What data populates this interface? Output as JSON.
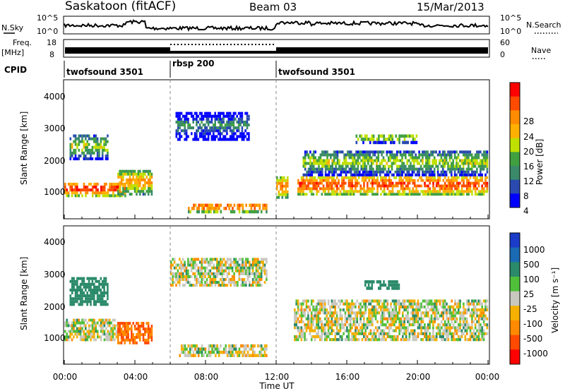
{
  "header": {
    "station": "Saskatoon (fitACF)",
    "beam": "Beam 03",
    "date": "15/Mar/2013"
  },
  "top_panels": {
    "nsky_label": "N.Sky",
    "nsky_ticks": [
      "10^5",
      "10^0"
    ],
    "nsearch_label": "N.Search",
    "nsearch_ticks": [
      "10^5",
      "10^0"
    ],
    "freq_label_1": "Freq.",
    "freq_label_2": "[MHz]",
    "freq_ticks": [
      "18",
      "8"
    ],
    "nave_label": "Nave",
    "nave_ticks": [
      "60",
      "0"
    ],
    "cpid_label": "CPID"
  },
  "cpid_segments": [
    {
      "label": "twofsound 3501",
      "start_hour": 0,
      "end_hour": 6
    },
    {
      "label": "rbsp 200",
      "start_hour": 6,
      "end_hour": 12
    },
    {
      "label": "twofsound 3501",
      "start_hour": 12,
      "end_hour": 24
    }
  ],
  "panels": {
    "power": {
      "ylabel": "Slant Range [km]",
      "yticks": [
        "4000",
        "3000",
        "2000",
        "1000"
      ],
      "cbar_label": "Power [dB]",
      "cbar_ticks": [
        "28",
        "24",
        "20",
        "16",
        "12",
        "8",
        "4"
      ],
      "cbar_colors": [
        "#ff0000",
        "#ff4a00",
        "#ff8c00",
        "#ffb000",
        "#c0e000",
        "#40a040",
        "#3a8a6a",
        "#2a4ab0",
        "#0000ff"
      ]
    },
    "velocity": {
      "ylabel": "Slant Range [km]",
      "yticks": [
        "4000",
        "3000",
        "2000",
        "1000"
      ],
      "cbar_label": "Velocity [m s⁻¹]",
      "cbar_ticks": [
        "1000",
        "500",
        "100",
        "25",
        "-25",
        "-100",
        "-500",
        "-1000"
      ],
      "cbar_colors": [
        "#1a3cc8",
        "#1a6ab4",
        "#2a8a6a",
        "#50c03a",
        "#c8c8c0",
        "#f5b000",
        "#ff8a00",
        "#ff4a00",
        "#ff0000"
      ]
    }
  },
  "x_axis": {
    "label": "Time UT",
    "ticks": [
      "00:00",
      "04:00",
      "08:00",
      "12:00",
      "16:00",
      "20:00",
      "00:00"
    ]
  },
  "chart_data": [
    {
      "type": "heatmap",
      "name": "Power",
      "x_range_hours": [
        0,
        24
      ],
      "y_range_km": [
        180,
        4500
      ],
      "colorbar_range": [
        0,
        30
      ],
      "echo_bands": [
        {
          "t_start": 0,
          "t_end": 3.5,
          "range_km": [
            850,
            1300
          ],
          "power_db": 28
        },
        {
          "t_start": 0.3,
          "t_end": 2.5,
          "range_km": [
            2000,
            2800
          ],
          "power_db": 16
        },
        {
          "t_start": 3.0,
          "t_end": 5.0,
          "range_km": [
            900,
            1700
          ],
          "power_db": 22
        },
        {
          "t_start": 6.3,
          "t_end": 10.5,
          "range_km": [
            2600,
            3500
          ],
          "power_db": 10
        },
        {
          "t_start": 7.0,
          "t_end": 11.5,
          "range_km": [
            350,
            650
          ],
          "power_db": 26
        },
        {
          "t_start": 12.0,
          "t_end": 12.7,
          "range_km": [
            800,
            1500
          ],
          "power_db": 24
        },
        {
          "t_start": 13.2,
          "t_end": 24,
          "range_km": [
            900,
            1500
          ],
          "power_db": 27
        },
        {
          "t_start": 13.5,
          "t_end": 24,
          "range_km": [
            1500,
            2300
          ],
          "power_db": 16
        },
        {
          "t_start": 16.5,
          "t_end": 20.0,
          "range_km": [
            2500,
            2800
          ],
          "power_db": 18
        }
      ]
    },
    {
      "type": "heatmap",
      "name": "Velocity",
      "x_range_hours": [
        0,
        24
      ],
      "y_range_km": [
        180,
        4500
      ],
      "colorbar_range": [
        -1000,
        1000
      ],
      "echo_bands": [
        {
          "t_start": 0,
          "t_end": 3.0,
          "range_km": [
            900,
            1600
          ],
          "velocity_ms": 0
        },
        {
          "t_start": 0.3,
          "t_end": 2.5,
          "range_km": [
            2000,
            2900
          ],
          "velocity_ms": 200
        },
        {
          "t_start": 3.0,
          "t_end": 5.0,
          "range_km": [
            800,
            1500
          ],
          "velocity_ms": -300
        },
        {
          "t_start": 6.0,
          "t_end": 11.5,
          "range_km": [
            2600,
            3500
          ],
          "velocity_ms": 0
        },
        {
          "t_start": 6.5,
          "t_end": 11.5,
          "range_km": [
            400,
            800
          ],
          "velocity_ms": 0
        },
        {
          "t_start": 13.0,
          "t_end": 24,
          "range_km": [
            900,
            2200
          ],
          "velocity_ms": 0
        },
        {
          "t_start": 17.0,
          "t_end": 19.0,
          "range_km": [
            2500,
            2800
          ],
          "velocity_ms": 150
        }
      ]
    }
  ]
}
